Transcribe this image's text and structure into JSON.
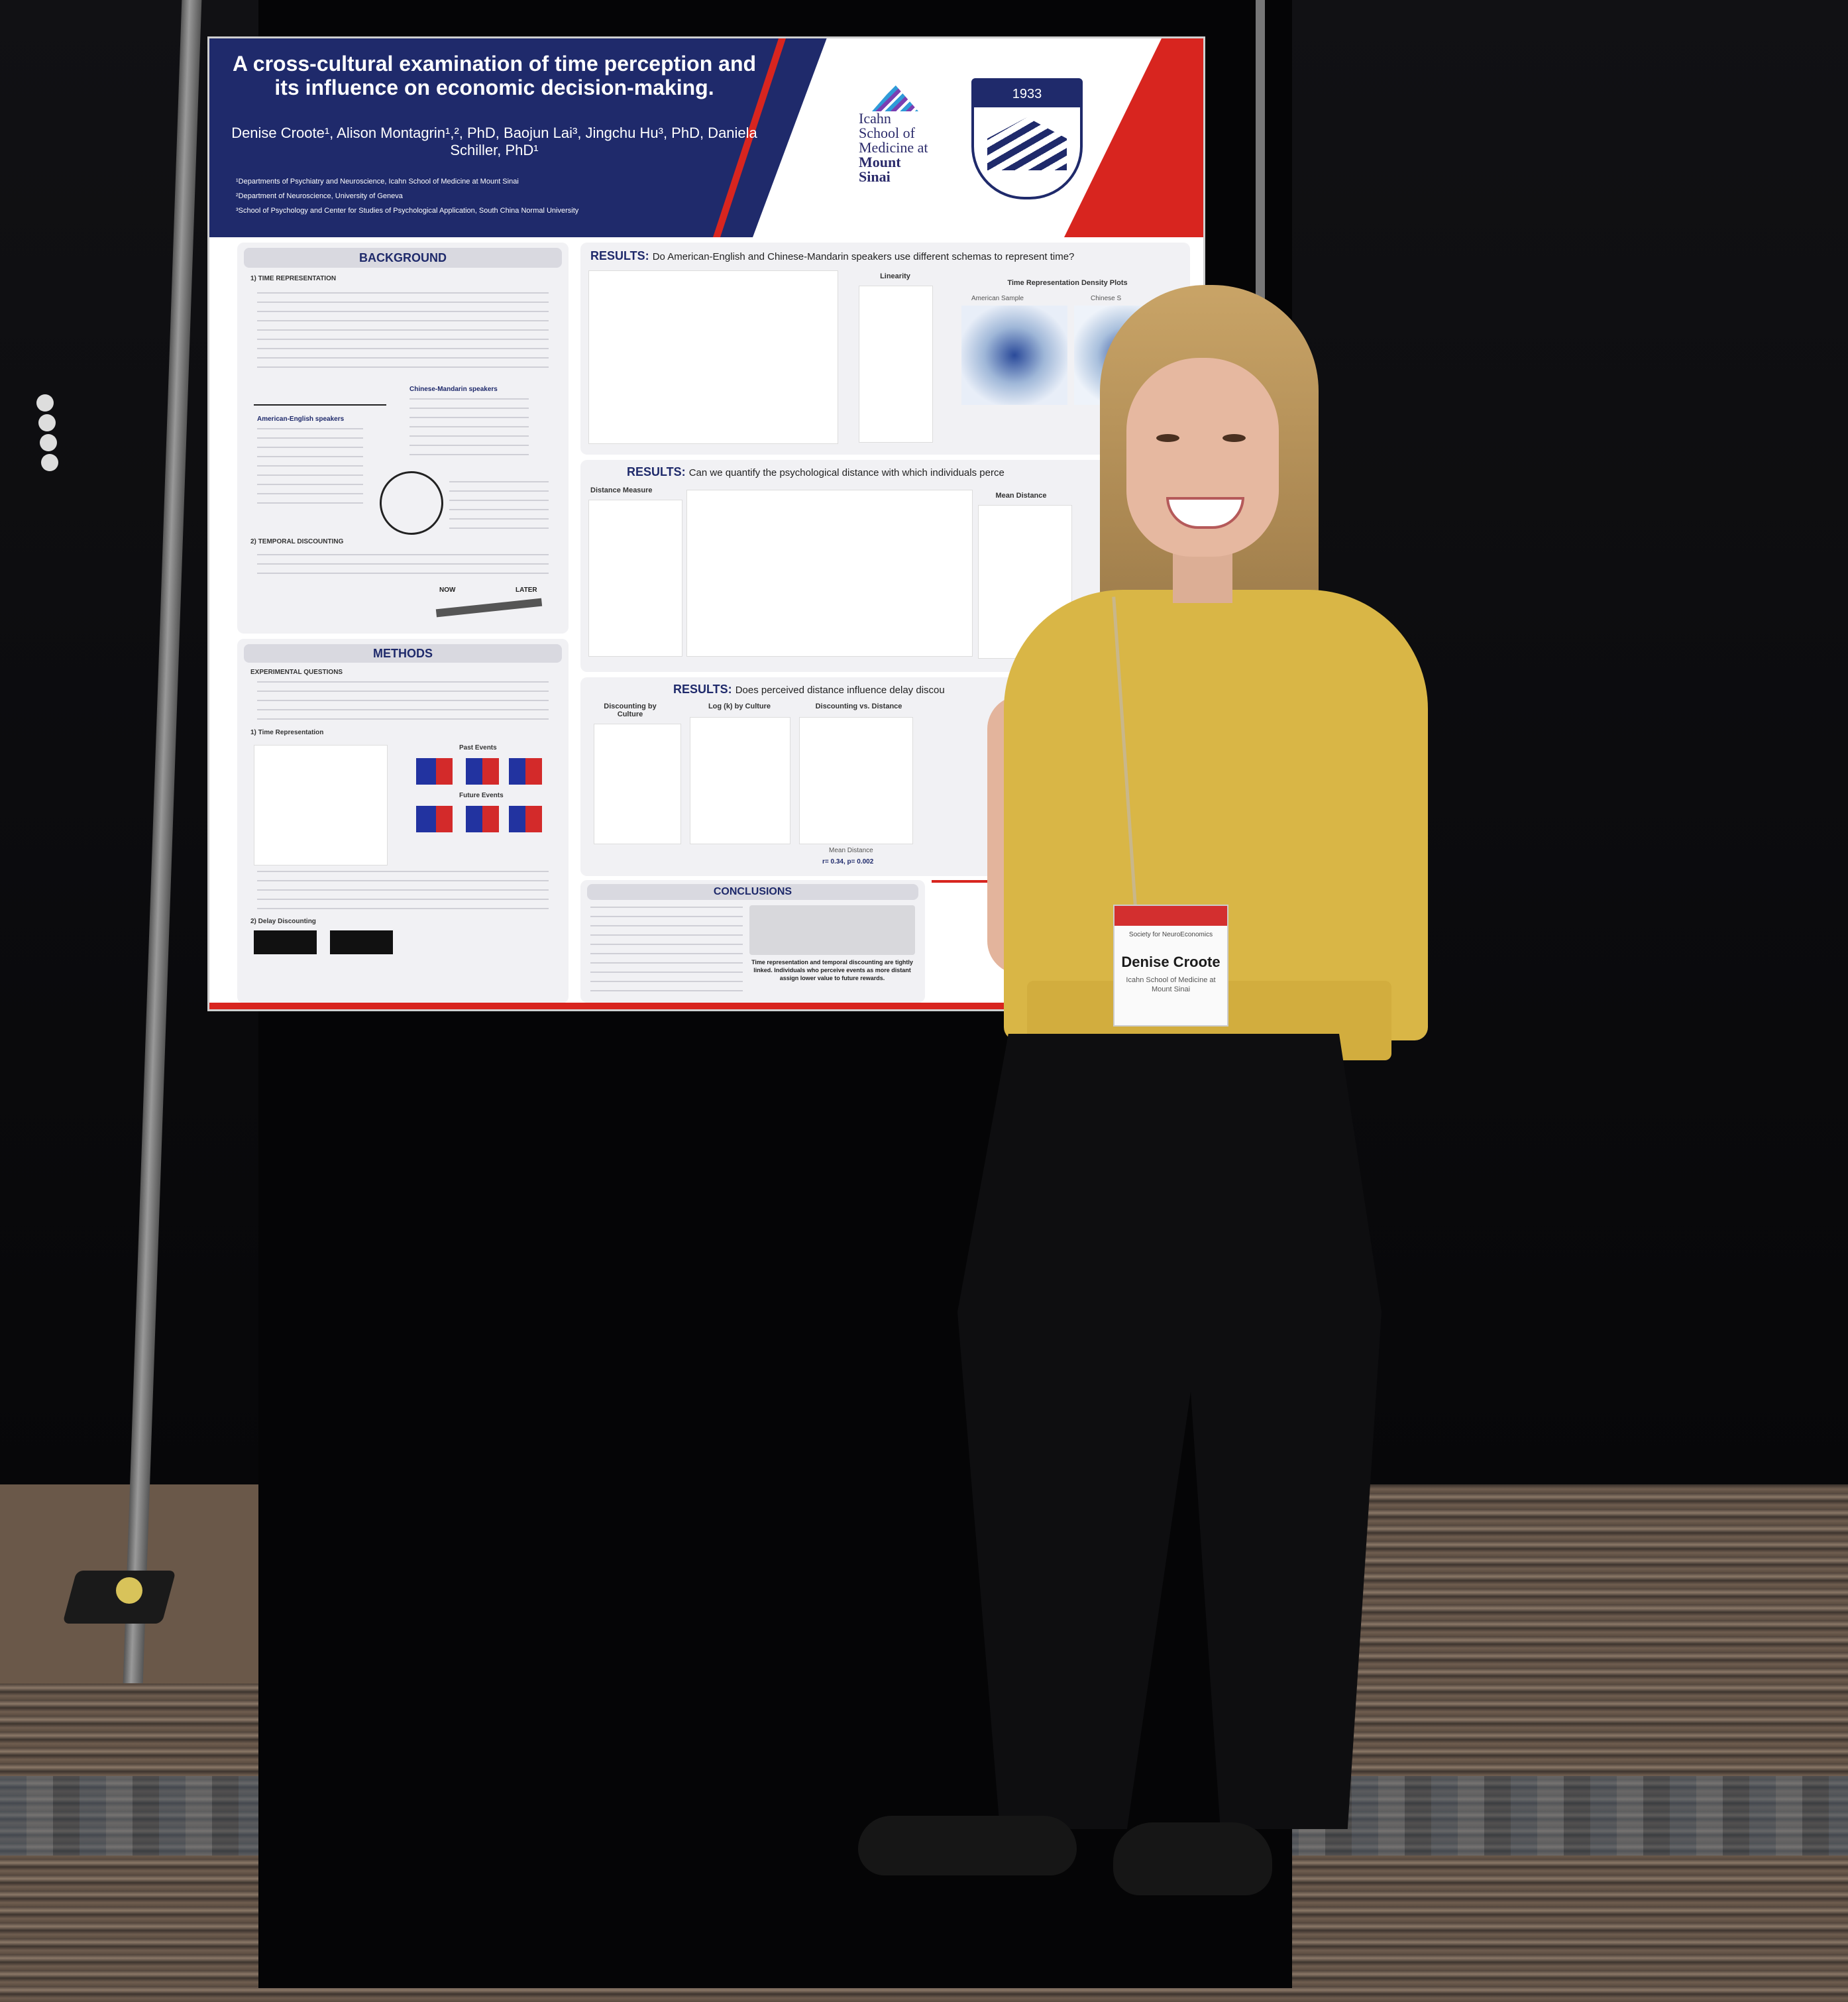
{
  "poster": {
    "title": "A cross-cultural examination of time perception and its influence on economic decision-making.",
    "authors": "Denise Croote¹, Alison Montagrin¹,², PhD, Baojun Lai³, Jingchu Hu³, PhD, Daniela Schiller, PhD¹",
    "affiliations": [
      "¹Departments of Psychiatry and Neuroscience, Icahn School of Medicine at Mount Sinai",
      "²Department of Neuroscience, University of Geneva",
      "³School of Psychology and Center for Studies of Psychological Application, South China Normal University"
    ],
    "logo_msm": [
      "Icahn",
      "School of",
      "Medicine at",
      "Mount",
      "Sinai"
    ],
    "logo_scnu_year": "1933",
    "background": {
      "title": "BACKGROUND",
      "section1": "1) TIME REPRESENTATION",
      "american_label": "American-English speakers",
      "chinese_label": "Chinese-Mandarin speakers",
      "section2": "2) TEMPORAL DISCOUNTING",
      "now_label": "NOW",
      "later_label": "LATER"
    },
    "methods": {
      "title": "METHODS",
      "section": "EXPERIMENTAL QUESTIONS",
      "time_rep": "1) Time Representation",
      "delay_disc": "2) Delay Discounting",
      "past_events": "Past Events",
      "future_events": "Future Events"
    },
    "results1": {
      "title": "RESULTS:",
      "question": "Do American-English and Chinese-Mandarin speakers use different schemas to represent time?",
      "linearity": "Linearity",
      "density": "Time Representation Density Plots",
      "american_sample": "American Sample",
      "chinese_sample": "Chinese S"
    },
    "results2": {
      "title": "RESULTS:",
      "question": "Can we quantify the psychological distance with which individuals perce",
      "distance_measure": "Distance Measure",
      "mean_distance": "Mean Distance"
    },
    "results3": {
      "title": "RESULTS:",
      "question": "Does perceived distance influence delay discou",
      "discounting_culture": "Discounting by Culture",
      "logk_culture": "Log (k) by Culture",
      "disc_vs_distance": "Discounting vs. Distance",
      "mean_distance": "Mean Distance",
      "stat": "r= 0.34, p= 0.002"
    },
    "conclusions": {
      "title": "CONCLUSIONS",
      "summary": "Time representation and temporal discounting are tightly linked. Individuals who perceive events as more distant assign lower value to future rewards."
    }
  },
  "badge": {
    "org": "Society for NeuroEconomics",
    "name": "Denise Croote",
    "subtitle": "Icahn School of Medicine at Mount Sinai"
  },
  "colors": {
    "poster_navy": "#1f2a6b",
    "poster_red": "#d8251f",
    "shirt_yellow": "#d9b646"
  }
}
